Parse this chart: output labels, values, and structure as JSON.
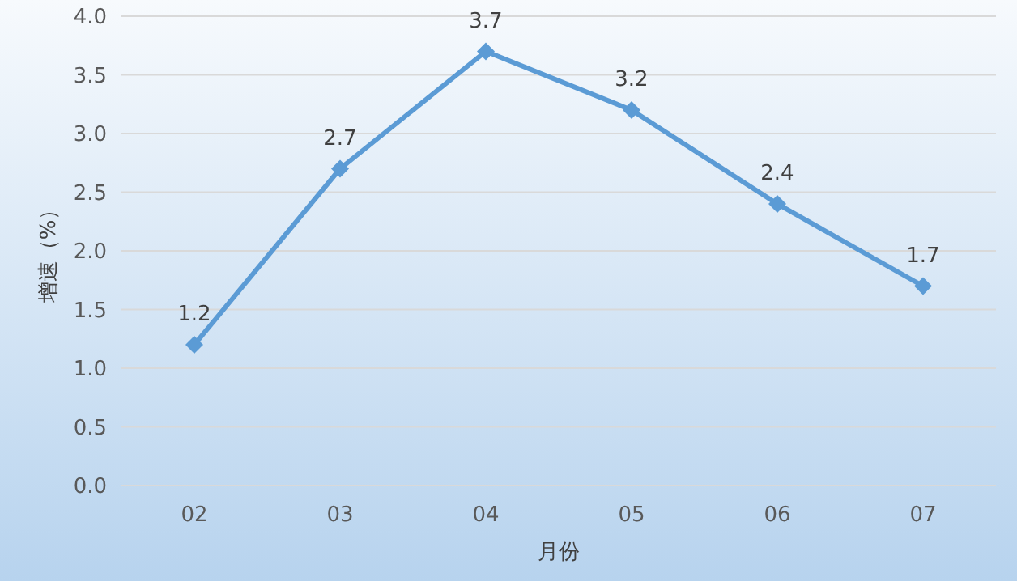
{
  "chart_data": {
    "type": "line",
    "xlabel": "月份",
    "ylabel": "增速（%）",
    "categories": [
      "02",
      "03",
      "04",
      "05",
      "06",
      "07"
    ],
    "series": [
      {
        "color": "#5b9bd5",
        "values": [
          1.2,
          2.7,
          3.7,
          3.2,
          2.4,
          1.7
        ]
      }
    ],
    "ylim": [
      0,
      4
    ],
    "yticks": [
      {
        "value": 0,
        "label": "0.0"
      },
      {
        "value": 0.5,
        "label": "0.5"
      },
      {
        "value": 1,
        "label": "1.0"
      },
      {
        "value": 1.5,
        "label": "1.5"
      },
      {
        "value": 2,
        "label": "2.0"
      },
      {
        "value": 2.5,
        "label": "2.5"
      },
      {
        "value": 3,
        "label": "3.0"
      },
      {
        "value": 3.5,
        "label": "3.5"
      },
      {
        "value": 4,
        "label": "4.0"
      }
    ],
    "grid": "y",
    "marker": "diamond",
    "data_labels": true
  }
}
